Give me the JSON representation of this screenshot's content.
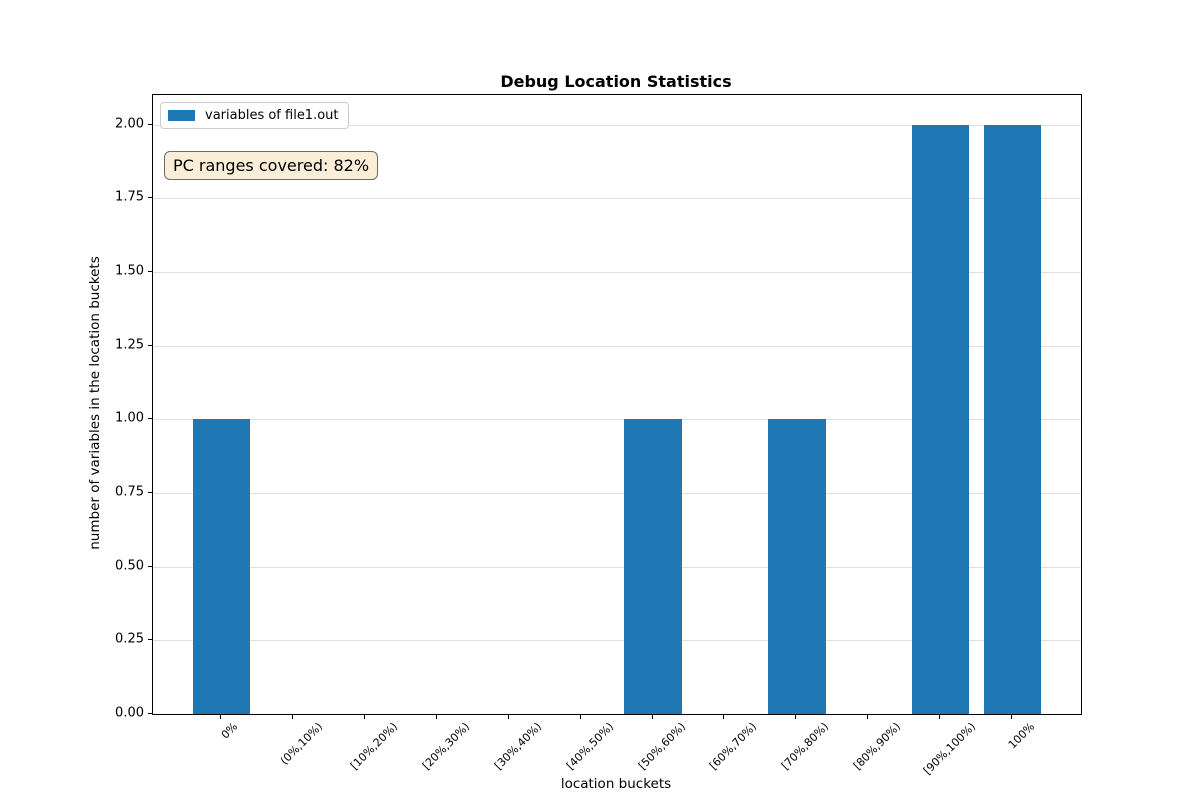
{
  "chart_data": {
    "type": "bar",
    "title": "Debug Location Statistics",
    "xlabel": "location buckets",
    "ylabel": "number of variables in the location buckets",
    "categories": [
      "0%",
      "(0%,10%)",
      "[10%,20%)",
      "[20%,30%)",
      "[30%,40%)",
      "[40%,50%)",
      "[50%,60%)",
      "[60%,70%)",
      "[70%,80%)",
      "[80%,90%)",
      "[90%,100%)",
      "100%"
    ],
    "series": [
      {
        "name": "variables of file1.out",
        "values": [
          1,
          0,
          0,
          0,
          0,
          0,
          1,
          0,
          1,
          0,
          2,
          2
        ]
      }
    ],
    "ylim": [
      0,
      2.1
    ],
    "yticks": [
      0.0,
      0.25,
      0.5,
      0.75,
      1.0,
      1.25,
      1.5,
      1.75,
      2.0
    ],
    "ytick_labels": [
      "0.00",
      "0.25",
      "0.50",
      "0.75",
      "1.00",
      "1.25",
      "1.50",
      "1.75",
      "2.00"
    ],
    "grid": "horizontal-major-y",
    "legend_position": "upper-left"
  },
  "legend": {
    "label": "variables of file1.out"
  },
  "annotation": {
    "text": "PC ranges covered: 82%"
  },
  "colors": {
    "bar": "#1f77b4",
    "grid": "#e0e0e0",
    "annotation_bg": "#faeed9",
    "annotation_border": "#6b6b6b",
    "legend_border": "#cccccc",
    "axis": "#000000"
  }
}
